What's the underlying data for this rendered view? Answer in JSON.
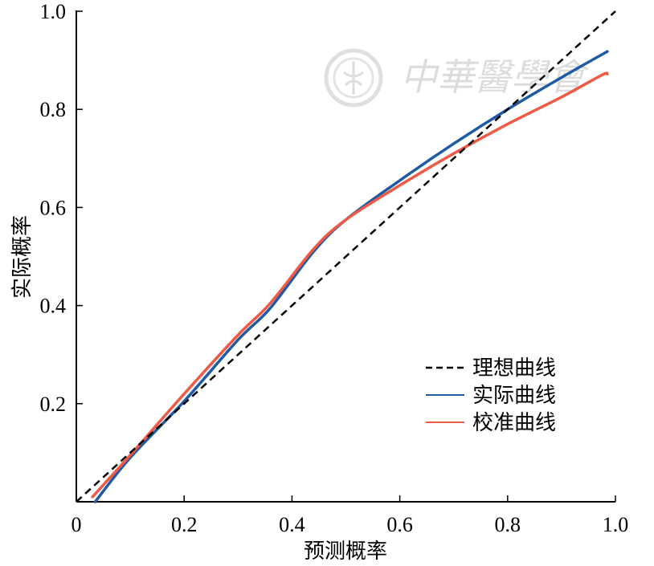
{
  "chart_data": {
    "type": "line",
    "title": "",
    "xlabel": "预测概率",
    "ylabel": "实际概率",
    "xlim": [
      0,
      1.0
    ],
    "ylim": [
      0,
      1.0
    ],
    "x_ticks": [
      "0",
      "0.2",
      "0.4",
      "0.6",
      "0.8",
      "1.0"
    ],
    "y_ticks": [
      "0.2",
      "0.4",
      "0.6",
      "0.8",
      "1.0"
    ],
    "grid": false,
    "legend_position": "lower-right",
    "series": [
      {
        "name": "理想曲线",
        "color": "#000000",
        "style": "dashed",
        "x": [
          0,
          1.0
        ],
        "y": [
          0,
          1.0
        ]
      },
      {
        "name": "实际曲线",
        "color": "#1f5aa6",
        "style": "solid",
        "x": [
          0.035,
          0.1,
          0.2,
          0.3,
          0.36,
          0.44,
          0.5,
          0.6,
          0.7,
          0.8,
          0.9,
          0.985
        ],
        "y": [
          0.0,
          0.09,
          0.205,
          0.33,
          0.395,
          0.51,
          0.575,
          0.655,
          0.73,
          0.8,
          0.865,
          0.918
        ]
      },
      {
        "name": "校准曲线",
        "color": "#ee5a45",
        "style": "solid",
        "x": [
          0.03,
          0.1,
          0.2,
          0.3,
          0.36,
          0.44,
          0.5,
          0.6,
          0.7,
          0.8,
          0.9,
          0.975,
          0.985
        ],
        "y": [
          0.01,
          0.095,
          0.22,
          0.34,
          0.405,
          0.515,
          0.575,
          0.645,
          0.71,
          0.77,
          0.825,
          0.87,
          0.872
        ]
      }
    ],
    "watermark": {
      "text": "中華醫學會",
      "icon": "seal-icon"
    }
  }
}
